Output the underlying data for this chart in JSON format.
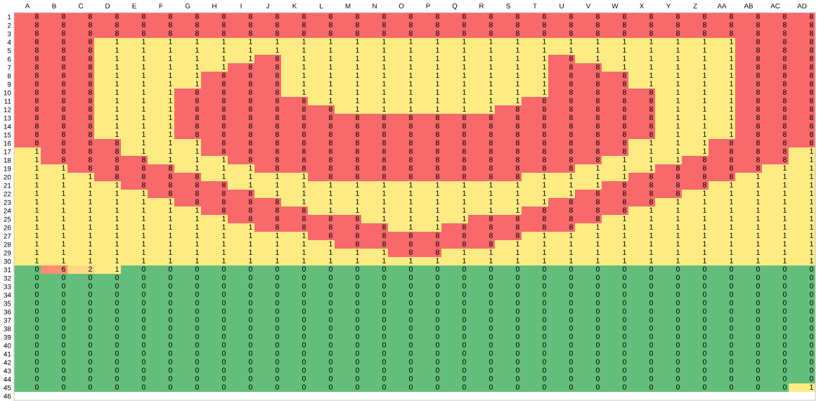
{
  "chart_data": {
    "type": "heatmap",
    "data_labels": true,
    "categories": [
      "A",
      "B",
      "C",
      "D",
      "E",
      "F",
      "G",
      "H",
      "I",
      "J",
      "K",
      "L",
      "M",
      "N",
      "O",
      "P",
      "Q",
      "R",
      "S",
      "T",
      "U",
      "V",
      "W",
      "X",
      "Y",
      "Z",
      "AA",
      "AB",
      "AC",
      "AD"
    ],
    "y_categories": [
      "1",
      "2",
      "3",
      "4",
      "5",
      "6",
      "7",
      "8",
      "9",
      "10",
      "11",
      "12",
      "13",
      "14",
      "15",
      "16",
      "17",
      "18",
      "19",
      "20",
      "21",
      "22",
      "23",
      "24",
      "25",
      "26",
      "27",
      "28",
      "29",
      "30",
      "31",
      "32",
      "33",
      "34",
      "35",
      "36",
      "37",
      "38",
      "39",
      "40",
      "41",
      "42",
      "43",
      "44",
      "45",
      "46"
    ],
    "cells": [
      [
        8,
        8,
        8,
        8,
        8,
        8,
        8,
        8,
        8,
        8,
        8,
        8,
        8,
        8,
        8,
        8,
        8,
        8,
        8,
        8,
        8,
        8,
        8,
        8,
        8,
        8,
        8,
        8,
        8,
        8
      ],
      [
        8,
        8,
        8,
        8,
        8,
        8,
        8,
        8,
        8,
        8,
        8,
        8,
        8,
        8,
        8,
        8,
        8,
        8,
        8,
        8,
        8,
        8,
        8,
        8,
        8,
        8,
        8,
        8,
        8,
        8
      ],
      [
        8,
        8,
        8,
        8,
        8,
        8,
        8,
        8,
        8,
        8,
        8,
        8,
        8,
        8,
        8,
        8,
        8,
        8,
        8,
        8,
        8,
        8,
        8,
        8,
        8,
        8,
        8,
        8,
        8,
        8
      ],
      [
        8,
        8,
        8,
        1,
        1,
        1,
        1,
        1,
        1,
        1,
        1,
        1,
        1,
        1,
        1,
        1,
        1,
        1,
        1,
        1,
        1,
        1,
        1,
        1,
        1,
        1,
        1,
        8,
        8,
        8
      ],
      [
        8,
        8,
        8,
        1,
        1,
        1,
        1,
        1,
        1,
        1,
        1,
        1,
        1,
        1,
        1,
        1,
        1,
        1,
        1,
        1,
        1,
        1,
        1,
        1,
        1,
        1,
        1,
        8,
        8,
        8
      ],
      [
        8,
        8,
        8,
        1,
        1,
        1,
        1,
        1,
        1,
        8,
        1,
        1,
        1,
        1,
        1,
        1,
        1,
        1,
        1,
        1,
        8,
        1,
        1,
        1,
        1,
        1,
        1,
        8,
        8,
        8
      ],
      [
        8,
        8,
        8,
        1,
        1,
        1,
        1,
        1,
        8,
        8,
        1,
        1,
        1,
        1,
        1,
        1,
        1,
        1,
        1,
        1,
        8,
        8,
        1,
        1,
        1,
        1,
        1,
        8,
        8,
        8
      ],
      [
        8,
        8,
        8,
        1,
        1,
        1,
        1,
        8,
        8,
        8,
        1,
        1,
        1,
        1,
        1,
        1,
        1,
        1,
        1,
        1,
        8,
        8,
        8,
        1,
        1,
        1,
        1,
        8,
        8,
        8
      ],
      [
        8,
        8,
        8,
        1,
        1,
        1,
        1,
        8,
        8,
        8,
        1,
        1,
        1,
        1,
        1,
        1,
        1,
        1,
        1,
        1,
        8,
        8,
        8,
        1,
        1,
        1,
        1,
        8,
        8,
        8
      ],
      [
        8,
        8,
        8,
        1,
        1,
        1,
        8,
        8,
        8,
        8,
        1,
        1,
        1,
        1,
        1,
        1,
        1,
        1,
        1,
        1,
        8,
        8,
        8,
        8,
        1,
        1,
        1,
        8,
        8,
        8
      ],
      [
        8,
        8,
        8,
        1,
        1,
        1,
        8,
        8,
        8,
        8,
        8,
        1,
        1,
        1,
        1,
        1,
        1,
        1,
        1,
        8,
        8,
        8,
        8,
        8,
        1,
        1,
        1,
        8,
        8,
        8
      ],
      [
        8,
        8,
        8,
        1,
        1,
        1,
        8,
        8,
        8,
        8,
        8,
        8,
        1,
        1,
        1,
        1,
        1,
        1,
        8,
        8,
        8,
        8,
        8,
        8,
        1,
        1,
        1,
        8,
        8,
        8
      ],
      [
        8,
        8,
        8,
        1,
        1,
        1,
        8,
        8,
        8,
        8,
        8,
        8,
        8,
        8,
        8,
        8,
        8,
        8,
        8,
        8,
        8,
        8,
        8,
        8,
        1,
        1,
        1,
        8,
        8,
        8
      ],
      [
        8,
        8,
        8,
        1,
        1,
        1,
        8,
        8,
        8,
        8,
        8,
        8,
        8,
        8,
        8,
        8,
        8,
        8,
        8,
        8,
        8,
        8,
        8,
        8,
        1,
        1,
        1,
        8,
        8,
        8
      ],
      [
        8,
        8,
        8,
        1,
        1,
        1,
        8,
        8,
        8,
        8,
        8,
        8,
        8,
        8,
        8,
        8,
        8,
        8,
        8,
        8,
        8,
        8,
        8,
        8,
        1,
        1,
        1,
        8,
        8,
        8
      ],
      [
        8,
        8,
        8,
        8,
        1,
        1,
        1,
        8,
        8,
        8,
        8,
        8,
        8,
        8,
        8,
        8,
        8,
        8,
        8,
        8,
        8,
        8,
        8,
        1,
        1,
        1,
        8,
        8,
        8,
        8
      ],
      [
        1,
        8,
        8,
        8,
        1,
        1,
        1,
        8,
        8,
        8,
        8,
        8,
        8,
        8,
        8,
        8,
        8,
        8,
        8,
        8,
        8,
        8,
        8,
        1,
        1,
        1,
        8,
        8,
        8,
        1
      ],
      [
        1,
        8,
        8,
        8,
        8,
        1,
        1,
        1,
        8,
        8,
        8,
        8,
        8,
        8,
        8,
        8,
        8,
        8,
        8,
        8,
        8,
        8,
        1,
        1,
        1,
        8,
        8,
        8,
        8,
        1
      ],
      [
        1,
        1,
        8,
        8,
        8,
        8,
        1,
        1,
        1,
        8,
        8,
        8,
        8,
        8,
        8,
        8,
        8,
        8,
        8,
        8,
        8,
        1,
        1,
        1,
        8,
        8,
        8,
        8,
        1,
        1
      ],
      [
        1,
        1,
        1,
        8,
        8,
        8,
        8,
        1,
        1,
        1,
        1,
        8,
        8,
        8,
        8,
        8,
        8,
        8,
        8,
        1,
        1,
        1,
        1,
        8,
        8,
        8,
        8,
        1,
        1,
        1
      ],
      [
        1,
        1,
        1,
        1,
        8,
        8,
        8,
        8,
        1,
        1,
        1,
        1,
        1,
        1,
        1,
        1,
        1,
        1,
        1,
        1,
        1,
        1,
        8,
        8,
        8,
        8,
        1,
        1,
        1,
        1
      ],
      [
        1,
        1,
        1,
        1,
        1,
        8,
        8,
        8,
        8,
        1,
        1,
        1,
        1,
        1,
        1,
        1,
        1,
        1,
        1,
        1,
        1,
        8,
        8,
        8,
        8,
        1,
        1,
        1,
        1,
        1
      ],
      [
        1,
        1,
        1,
        1,
        1,
        1,
        8,
        8,
        8,
        8,
        1,
        1,
        1,
        1,
        1,
        1,
        1,
        1,
        1,
        1,
        8,
        8,
        8,
        8,
        1,
        1,
        1,
        1,
        1,
        1
      ],
      [
        1,
        1,
        1,
        1,
        1,
        1,
        1,
        8,
        8,
        8,
        8,
        1,
        1,
        1,
        1,
        1,
        1,
        1,
        1,
        8,
        8,
        8,
        8,
        1,
        1,
        1,
        1,
        1,
        1,
        1
      ],
      [
        1,
        1,
        1,
        1,
        1,
        1,
        1,
        1,
        8,
        8,
        8,
        8,
        8,
        1,
        1,
        1,
        1,
        8,
        8,
        8,
        8,
        8,
        1,
        1,
        1,
        1,
        1,
        1,
        1,
        1
      ],
      [
        1,
        1,
        1,
        1,
        1,
        1,
        1,
        1,
        1,
        8,
        8,
        8,
        8,
        8,
        1,
        1,
        8,
        8,
        8,
        8,
        8,
        1,
        1,
        1,
        1,
        1,
        1,
        1,
        1,
        1
      ],
      [
        1,
        1,
        1,
        1,
        1,
        1,
        1,
        1,
        1,
        1,
        1,
        8,
        8,
        8,
        8,
        8,
        8,
        8,
        8,
        1,
        1,
        1,
        1,
        1,
        1,
        1,
        1,
        1,
        1,
        1
      ],
      [
        1,
        1,
        1,
        1,
        1,
        1,
        1,
        1,
        1,
        1,
        1,
        1,
        8,
        8,
        8,
        8,
        8,
        8,
        1,
        1,
        1,
        1,
        1,
        1,
        1,
        1,
        1,
        1,
        1,
        1
      ],
      [
        1,
        1,
        1,
        1,
        1,
        1,
        1,
        1,
        1,
        1,
        1,
        1,
        1,
        1,
        8,
        8,
        1,
        1,
        1,
        1,
        1,
        1,
        1,
        1,
        1,
        1,
        1,
        1,
        1,
        1
      ],
      [
        1,
        1,
        1,
        1,
        1,
        1,
        1,
        1,
        1,
        1,
        1,
        1,
        1,
        1,
        1,
        1,
        1,
        1,
        1,
        1,
        1,
        1,
        1,
        1,
        1,
        1,
        1,
        1,
        1,
        1
      ],
      [
        0,
        6,
        2,
        1,
        0,
        0,
        0,
        0,
        0,
        0,
        0,
        0,
        0,
        0,
        0,
        0,
        0,
        0,
        0,
        0,
        0,
        0,
        0,
        0,
        0,
        0,
        0,
        0,
        0,
        0
      ],
      [
        0,
        0,
        0,
        0,
        0,
        0,
        0,
        0,
        0,
        0,
        0,
        0,
        0,
        0,
        0,
        0,
        0,
        0,
        0,
        0,
        0,
        0,
        0,
        0,
        0,
        0,
        0,
        0,
        0,
        0
      ],
      [
        0,
        0,
        0,
        0,
        0,
        0,
        0,
        0,
        0,
        0,
        0,
        0,
        0,
        0,
        0,
        0,
        0,
        0,
        0,
        0,
        0,
        0,
        0,
        0,
        0,
        0,
        0,
        0,
        0,
        0
      ],
      [
        0,
        0,
        0,
        0,
        0,
        0,
        0,
        0,
        0,
        0,
        0,
        0,
        0,
        0,
        0,
        0,
        0,
        0,
        0,
        0,
        0,
        0,
        0,
        0,
        0,
        0,
        0,
        0,
        0,
        0
      ],
      [
        0,
        0,
        0,
        0,
        0,
        0,
        0,
        0,
        0,
        0,
        0,
        0,
        0,
        0,
        0,
        0,
        0,
        0,
        0,
        0,
        0,
        0,
        0,
        0,
        0,
        0,
        0,
        0,
        0,
        0
      ],
      [
        0,
        0,
        0,
        0,
        0,
        0,
        0,
        0,
        0,
        0,
        0,
        0,
        0,
        0,
        0,
        0,
        0,
        0,
        0,
        0,
        0,
        0,
        0,
        0,
        0,
        0,
        0,
        0,
        0,
        0
      ],
      [
        0,
        0,
        0,
        0,
        0,
        0,
        0,
        0,
        0,
        0,
        0,
        0,
        0,
        0,
        0,
        0,
        0,
        0,
        0,
        0,
        0,
        0,
        0,
        0,
        0,
        0,
        0,
        0,
        0,
        0
      ],
      [
        0,
        0,
        0,
        0,
        0,
        0,
        0,
        0,
        0,
        0,
        0,
        0,
        0,
        0,
        0,
        0,
        0,
        0,
        0,
        0,
        0,
        0,
        0,
        0,
        0,
        0,
        0,
        0,
        0,
        0
      ],
      [
        0,
        0,
        0,
        0,
        0,
        0,
        0,
        0,
        0,
        0,
        0,
        0,
        0,
        0,
        0,
        0,
        0,
        0,
        0,
        0,
        0,
        0,
        0,
        0,
        0,
        0,
        0,
        0,
        0,
        0
      ],
      [
        0,
        0,
        0,
        0,
        0,
        0,
        0,
        0,
        0,
        0,
        0,
        0,
        0,
        0,
        0,
        0,
        0,
        0,
        0,
        0,
        0,
        0,
        0,
        0,
        0,
        0,
        0,
        0,
        0,
        0
      ],
      [
        0,
        0,
        0,
        0,
        0,
        0,
        0,
        0,
        0,
        0,
        0,
        0,
        0,
        0,
        0,
        0,
        0,
        0,
        0,
        0,
        0,
        0,
        0,
        0,
        0,
        0,
        0,
        0,
        0,
        0
      ],
      [
        0,
        0,
        0,
        0,
        0,
        0,
        0,
        0,
        0,
        0,
        0,
        0,
        0,
        0,
        0,
        0,
        0,
        0,
        0,
        0,
        0,
        0,
        0,
        0,
        0,
        0,
        0,
        0,
        0,
        0
      ],
      [
        0,
        0,
        0,
        0,
        0,
        0,
        0,
        0,
        0,
        0,
        0,
        0,
        0,
        0,
        0,
        0,
        0,
        0,
        0,
        0,
        0,
        0,
        0,
        0,
        0,
        0,
        0,
        0,
        0,
        0
      ],
      [
        0,
        0,
        0,
        0,
        0,
        0,
        0,
        0,
        0,
        0,
        0,
        0,
        0,
        0,
        0,
        0,
        0,
        0,
        0,
        0,
        0,
        0,
        0,
        0,
        0,
        0,
        0,
        0,
        0,
        0
      ],
      [
        0,
        0,
        0,
        0,
        0,
        0,
        0,
        0,
        0,
        0,
        0,
        0,
        0,
        0,
        0,
        0,
        0,
        0,
        0,
        0,
        0,
        0,
        0,
        0,
        0,
        0,
        0,
        0,
        0,
        1
      ],
      [
        null,
        null,
        null,
        null,
        null,
        null,
        null,
        null,
        null,
        null,
        null,
        null,
        null,
        null,
        null,
        null,
        null,
        null,
        null,
        null,
        null,
        null,
        null,
        null,
        null,
        null,
        null,
        null,
        null,
        null
      ]
    ]
  }
}
